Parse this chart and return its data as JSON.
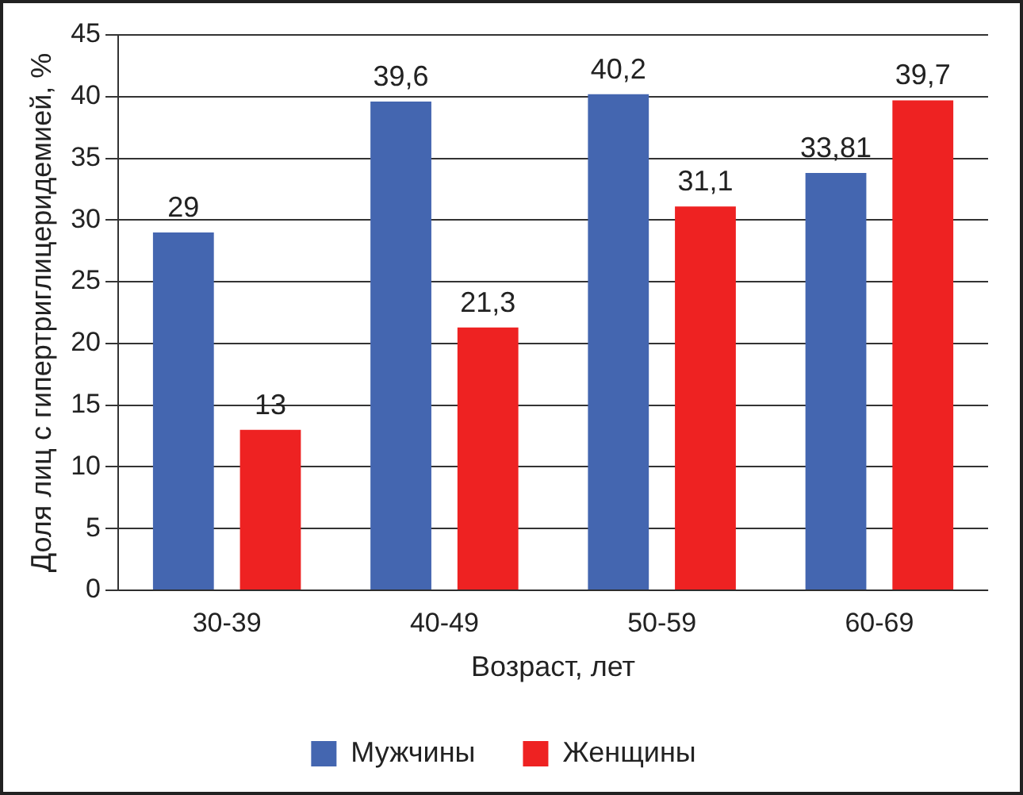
{
  "chart_data": {
    "type": "bar",
    "xlabel": "Возраст, лет",
    "ylabel": "Доля лиц с гипертриглицеридемией, %",
    "categories": [
      "30-39",
      "40-49",
      "50-59",
      "60-69"
    ],
    "series": [
      {
        "name": "Мужчины",
        "color": "#4466b0",
        "values": [
          29,
          39.6,
          40.2,
          33.81
        ],
        "value_labels": [
          "29",
          "39,6",
          "40,2",
          "33,81"
        ]
      },
      {
        "name": "Женщины",
        "color": "#ee2222",
        "values": [
          13,
          21.3,
          31.1,
          39.7
        ],
        "value_labels": [
          "13",
          "21,3",
          "31,1",
          "39,7"
        ]
      }
    ],
    "ylim": [
      0,
      45
    ],
    "yticks": [
      0,
      5,
      10,
      15,
      20,
      25,
      30,
      35,
      40,
      45
    ],
    "grid": "y",
    "legend": "bottom"
  }
}
